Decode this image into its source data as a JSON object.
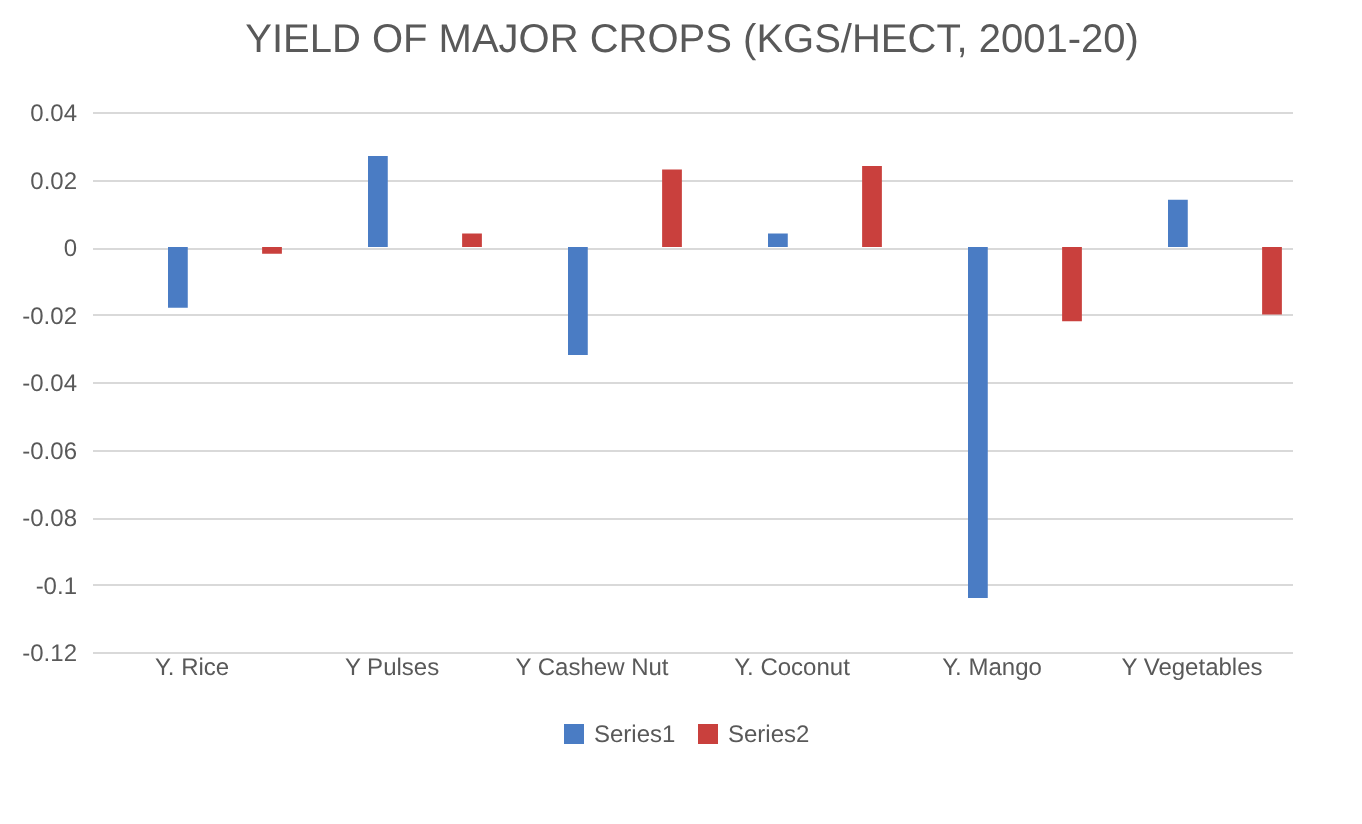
{
  "chart_data": {
    "type": "bar",
    "title": "YIELD OF MAJOR CROPS (KGS/HECT, 2001-20)",
    "categories": [
      "Y. Rice",
      "Y  Pulses",
      "Y Cashew Nut",
      "Y. Coconut",
      "Y. Mango",
      "Y Vegetables"
    ],
    "series": [
      {
        "name": "Series1",
        "color": "#4a7cc4",
        "values": [
          -0.018,
          0.027,
          -0.032,
          0.004,
          -0.104,
          0.014
        ]
      },
      {
        "name": "Series2",
        "color": "#c9403d",
        "values": [
          -0.002,
          0.004,
          0.023,
          0.024,
          -0.022,
          -0.02
        ]
      }
    ],
    "ylim": [
      -0.12,
      0.04
    ],
    "yticks": [
      -0.12,
      -0.1,
      -0.08,
      -0.06,
      -0.04,
      -0.02,
      0,
      0.02,
      0.04
    ],
    "grid": "y",
    "legend": "bottom"
  }
}
